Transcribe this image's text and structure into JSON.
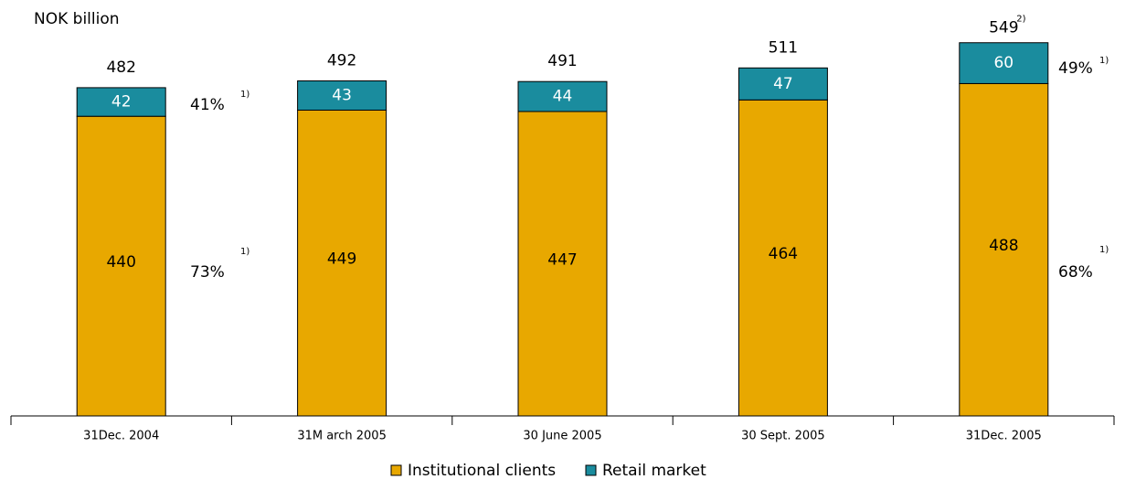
{
  "chart_data": {
    "type": "stacked_bar",
    "title": "NOK billion",
    "categories": [
      "31Dec. 2004",
      "31M arch 2005",
      "30 June 2005",
      "30 Sept. 2005",
      "31Dec. 2005"
    ],
    "series": [
      {
        "name": "Institutional clients",
        "color": "#E8A800",
        "values": [
          440,
          449,
          447,
          464,
          488
        ]
      },
      {
        "name": "Retail market",
        "color": "#1A8C9E",
        "values": [
          42,
          43,
          44,
          47,
          60
        ]
      }
    ],
    "totals": [
      482,
      492,
      491,
      511,
      549
    ],
    "total_notes": [
      null,
      null,
      null,
      null,
      "2)"
    ],
    "annotations": [
      {
        "text": "41%",
        "note": "1)"
      },
      {
        "text": "73%",
        "note": "1)"
      },
      {
        "text": "49%",
        "note": "1)"
      },
      {
        "text": "68%",
        "note": "1)"
      }
    ]
  }
}
